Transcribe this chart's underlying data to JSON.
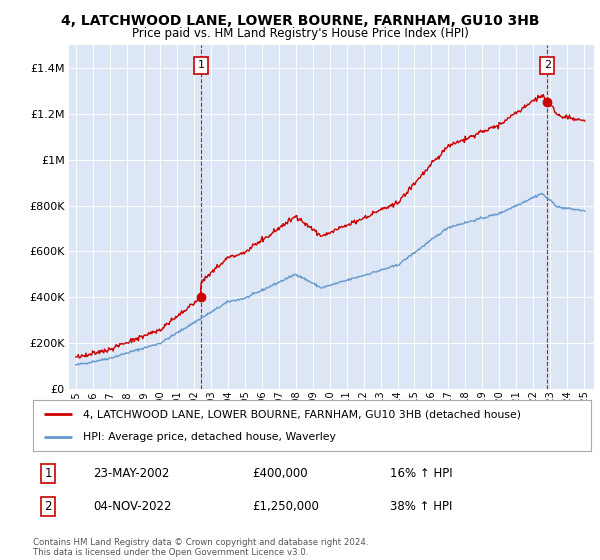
{
  "title": "4, LATCHWOOD LANE, LOWER BOURNE, FARNHAM, GU10 3HB",
  "subtitle": "Price paid vs. HM Land Registry's House Price Index (HPI)",
  "background_color": "#dce6f5",
  "plot_bg_color": "#dce6f5",
  "grid_color": "#ffffff",
  "line1_color": "#cc0000",
  "line2_color": "#6699cc",
  "sale1_year": 2002.39,
  "sale1_price": 400000,
  "sale2_year": 2022.84,
  "sale2_price": 1250000,
  "ylim": [
    0,
    1500000
  ],
  "yticks": [
    0,
    200000,
    400000,
    600000,
    800000,
    1000000,
    1200000,
    1400000
  ],
  "xlim_start": 1994.6,
  "xlim_end": 2025.6,
  "legend_line1": "4, LATCHWOOD LANE, LOWER BOURNE, FARNHAM, GU10 3HB (detached house)",
  "legend_line2": "HPI: Average price, detached house, Waverley",
  "ann1_num": "1",
  "ann1_date": "23-MAY-2002",
  "ann1_price": "£400,000",
  "ann1_hpi": "16% ↑ HPI",
  "ann2_num": "2",
  "ann2_date": "04-NOV-2022",
  "ann2_price": "£1,250,000",
  "ann2_hpi": "38% ↑ HPI",
  "footnote": "Contains HM Land Registry data © Crown copyright and database right 2024.\nThis data is licensed under the Open Government Licence v3.0."
}
